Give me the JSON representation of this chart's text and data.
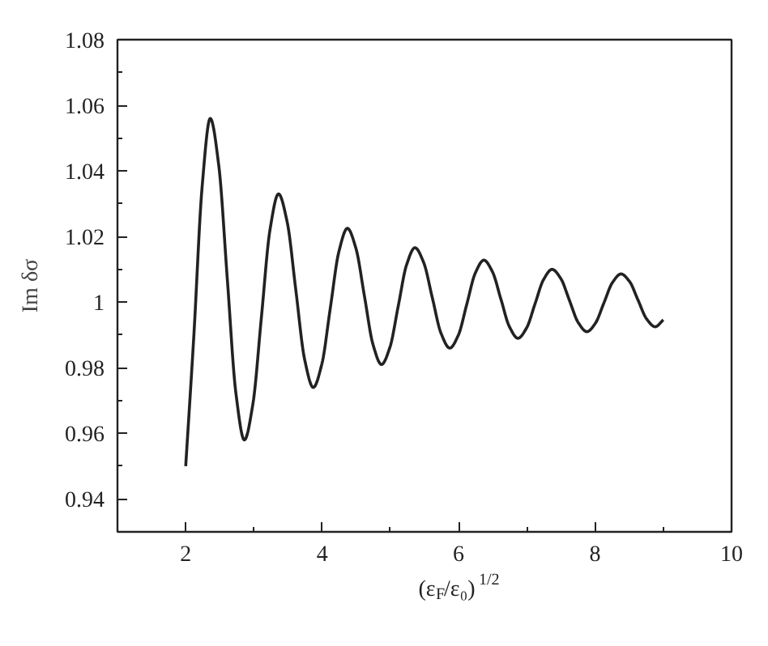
{
  "chart_data": {
    "type": "line",
    "xlabel": "(ε$_{F}$/ε₀)$^{1/2}$",
    "ylabel": "Im δσ",
    "xlim": [
      1,
      10
    ],
    "ylim": [
      0.93,
      1.08
    ],
    "xticks": [
      2,
      4,
      6,
      8,
      10
    ],
    "yticks": [
      0.94,
      0.96,
      0.98,
      1,
      1.02,
      1.04,
      1.06,
      1.08
    ],
    "grid": false,
    "marker": "none",
    "line_style": "solid",
    "series": [
      {
        "color": "#222222",
        "x": [
          2,
          2.12,
          2.24,
          2.36,
          2.485,
          2.61,
          2.735,
          2.86,
          2.985,
          3.11,
          3.235,
          3.36,
          3.4875,
          3.615,
          3.7425,
          3.87,
          3.995,
          4.12,
          4.245,
          4.37,
          4.495,
          4.62,
          4.745,
          4.87,
          4.9925,
          5.115,
          5.2375,
          5.36,
          5.4875,
          5.615,
          5.7425,
          5.87,
          5.995,
          6.12,
          6.245,
          6.37,
          6.495,
          6.62,
          6.745,
          6.87,
          6.995,
          7.12,
          7.245,
          7.37,
          7.4975,
          7.625,
          7.7525,
          7.88,
          8.005,
          8.13,
          8.255,
          8.38,
          8.505,
          8.63,
          8.755,
          8.88,
          9.0
        ],
        "values": [
          0.95,
          0.99,
          1.035,
          1.056,
          1.0416,
          1.007,
          0.9724,
          0.958,
          0.969,
          0.9955,
          1.022,
          1.033,
          1.0244,
          1.0035,
          0.9826,
          0.974,
          0.9811,
          0.9983,
          1.0154,
          1.0225,
          1.0164,
          1.0018,
          0.9871,
          0.981,
          0.9862,
          0.9988,
          1.0114,
          1.0166,
          1.0121,
          1.0013,
          0.9905,
          0.986,
          0.9899,
          0.9994,
          1.0089,
          1.0128,
          1.0093,
          1.0009,
          0.9925,
          0.989,
          0.9921,
          0.9995,
          1.0069,
          1.01,
          1.0072,
          1.0005,
          0.9938,
          0.991,
          0.9936,
          0.9998,
          1.006,
          1.0086,
          1.0063,
          1.0006,
          0.9949,
          0.9925,
          0.9946
        ]
      }
    ]
  }
}
